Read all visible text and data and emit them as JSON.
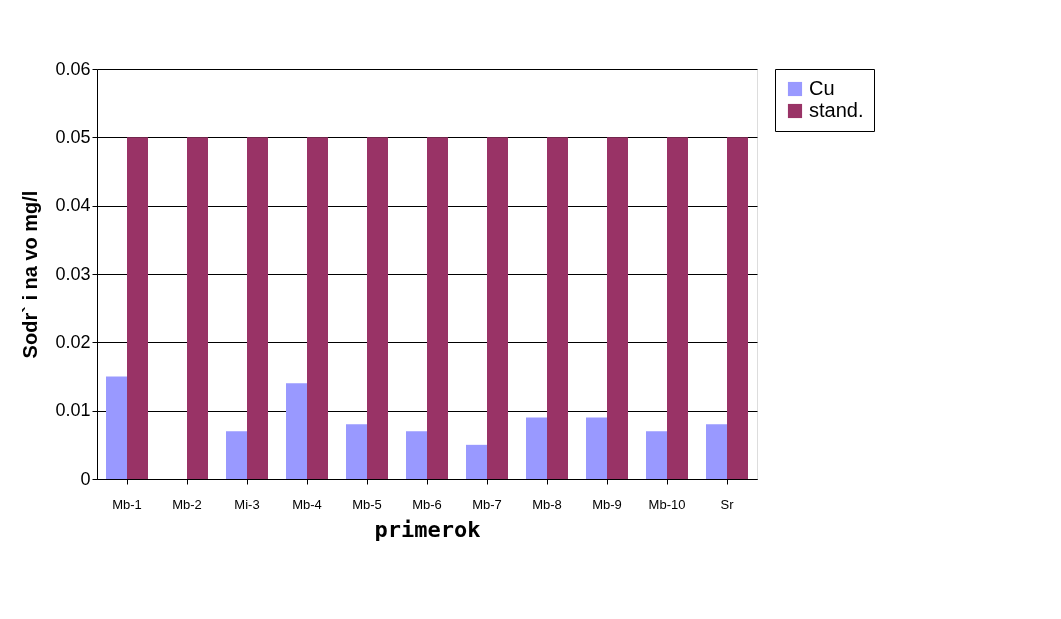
{
  "chart_data": {
    "type": "bar",
    "xlabel": "primerok",
    "ylabel": "Sodr` i na vo mg/l",
    "categories": [
      "Mb-1",
      "Mb-2",
      "Mi-3",
      "Mb-4",
      "Mb-5",
      "Mb-6",
      "Mb-7",
      "Mb-8",
      "Mb-9",
      "Mb-10",
      "Sr"
    ],
    "series": [
      {
        "name": "Cu",
        "color": "#9999ff",
        "values": [
          0.015,
          0,
          0.007,
          0.014,
          0.008,
          0.007,
          0.005,
          0.009,
          0.009,
          0.007,
          0.008
        ]
      },
      {
        "name": "stand.",
        "color": "#993366",
        "values": [
          0.05,
          0.05,
          0.05,
          0.05,
          0.05,
          0.05,
          0.05,
          0.05,
          0.05,
          0.05,
          0.05
        ]
      }
    ],
    "ylim": [
      0,
      0.06
    ],
    "yticks": [
      0,
      0.01,
      0.02,
      0.03,
      0.04,
      0.05,
      0.06
    ],
    "grid": "y",
    "legend": "right"
  }
}
